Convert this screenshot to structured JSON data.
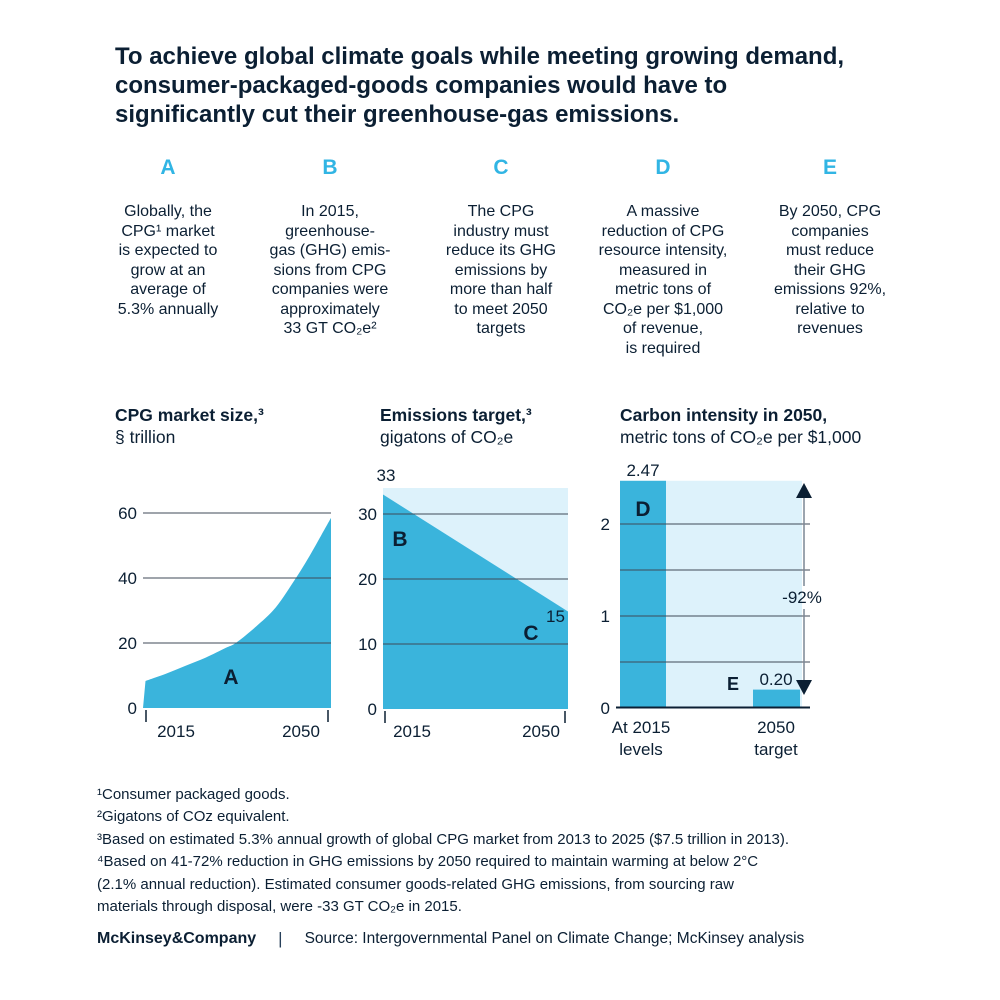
{
  "page": {
    "title": "To achieve global climate goals while meeting growing demand,\nconsumer-packaged-goods companies would have to\nsignificantly cut their greenhouse-gas emissions."
  },
  "columns": [
    {
      "letter": "A",
      "text": "Globally, the\nCPG¹ market\nis expected to\ngrow at an\naverage of\n5.3% annually"
    },
    {
      "letter": "B",
      "text": "In 2015,\ngreenhouse-\ngas (GHG) emis-\nsions from CPG\ncompanies were\napproximately\n33 GT CO₂e²"
    },
    {
      "letter": "C",
      "text": "The CPG\nindustry must\nreduce its GHG\nemissions by\nmore than half\nto meet 2050\ntargets"
    },
    {
      "letter": "D",
      "text": "A massive\nreduction of CPG\nresource intensity,\nmeasured in\nmetric tons of\nCO₂e per $1,000\nof revenue,\nis required"
    },
    {
      "letter": "E",
      "text": "By 2050, CPG\ncompanies\nmust reduce\ntheir GHG\nemissions 92%,\nrelative to\nrevenues"
    }
  ],
  "chart_data": [
    {
      "type": "area",
      "title": "CPG market size,³",
      "subtitle": "§ trillion",
      "series": [
        {
          "name": "CPG market size",
          "x": [
            2014,
            2018,
            2022,
            2026,
            2030,
            2032,
            2036,
            2040,
            2044,
            2047,
            2049,
            2051
          ],
          "values": [
            8.3,
            10.5,
            13,
            15.5,
            18.5,
            20,
            25,
            31,
            40,
            47.5,
            53,
            58.5
          ]
        }
      ],
      "area_label": "A",
      "xticks": [
        "2015",
        "2050"
      ],
      "yticks": [
        "0",
        "20",
        "40",
        "60"
      ],
      "xlim": [
        2013.5,
        2051
      ],
      "ylim": [
        0,
        63
      ],
      "grid": true,
      "legend": "none"
    },
    {
      "type": "area",
      "title": "Emissions target,³",
      "subtitle": "gigatons of CO₂e",
      "series": [
        {
          "name": "Emissions target",
          "x": [
            2015,
            2050
          ],
          "values": [
            33,
            15
          ]
        }
      ],
      "start_value_label": "33",
      "end_value_label": "15",
      "area_labels": [
        "B",
        "C"
      ],
      "xticks": [
        "2015",
        "2050"
      ],
      "yticks": [
        "0",
        "10",
        "20",
        "30"
      ],
      "xlim": [
        2015,
        2050
      ],
      "ylim": [
        0,
        34
      ],
      "grid": true,
      "legend": "none"
    },
    {
      "type": "bar",
      "title": "Carbon intensity in 2050,",
      "subtitle": "metric tons of CO₂e per $1,000",
      "categories": [
        "At 2015\nlevels",
        "2050\ntarget"
      ],
      "values": [
        2.47,
        0.2
      ],
      "value_labels": [
        "2.47",
        "0.20"
      ],
      "bar_labels": [
        "D",
        "E"
      ],
      "yticks": [
        "0",
        "1",
        "2"
      ],
      "ylim": [
        0,
        2.47
      ],
      "annotation": "-92%",
      "grid": true,
      "legend": "none"
    }
  ],
  "footnotes": {
    "text": "¹Consumer packaged goods.\n²Gigatons of COz equivalent.\n³Based on estimated 5.3% annual growth of global CPG market from 2013 to 2025 ($7.5 trillion in 2013).\n⁴Based on 41-72% reduction in GHG emissions by 2050 required to maintain warming at below 2°C\n(2.1% annual reduction). Estimated consumer goods-related GHG emissions, from sourcing raw\nmaterials through disposal, were -33 GT CO₂e in 2015."
  },
  "footer": {
    "brand": "McKinsey&Company",
    "separator": "|",
    "source": "Source: Intergovernmental Panel on Climate Change; McKinsey analysis"
  },
  "colors": {
    "navy": "#0b1f33",
    "cyan": "#31b5e4",
    "chart_blue": "#3ab4dc",
    "chart_light": "#ddf2fb",
    "grid": "#3f4a57",
    "arrow": "#7b8794",
    "white": "#ffffff"
  }
}
